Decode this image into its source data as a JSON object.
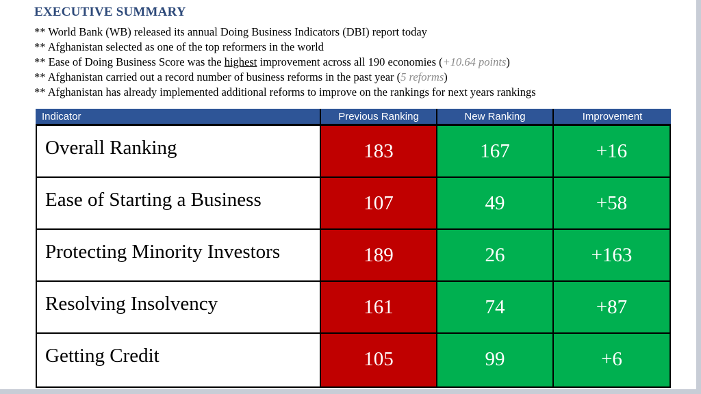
{
  "title": "EXECUTIVE SUMMARY",
  "bullets": [
    {
      "text": "** World Bank (WB) released its annual Doing Business Indicators (DBI) report today"
    },
    {
      "text": "** Afghanistan selected as one of the top reformers in the world"
    },
    {
      "pre": "** Ease of Doing Business Score was the ",
      "highlight": "highest",
      "post": " improvement across all 190 economies (",
      "note": "+10.64 points",
      "close": ")"
    },
    {
      "pre": "** Afghanistan carried out a record number of business reforms in the past year (",
      "note": "5 reforms",
      "close": ")"
    },
    {
      "text": "** Afghanistan has already implemented additional reforms to improve on the rankings for next years rankings"
    }
  ],
  "table": {
    "headers": [
      "Indicator",
      "Previous Ranking",
      "New Ranking",
      "Improvement"
    ],
    "rows": [
      {
        "indicator": "Overall Ranking",
        "previous": "183",
        "new": "167",
        "improvement": "+16"
      },
      {
        "indicator": "Ease of Starting a Business",
        "previous": "107",
        "new": "49",
        "improvement": "+58"
      },
      {
        "indicator": "Protecting Minority Investors",
        "previous": "189",
        "new": "26",
        "improvement": "+163"
      },
      {
        "indicator": "Resolving Insolvency",
        "previous": "161",
        "new": "74",
        "improvement": "+87"
      },
      {
        "indicator": "Getting Credit",
        "previous": "105",
        "new": "99",
        "improvement": "+6"
      }
    ]
  },
  "colors": {
    "title": "#2e4a7a",
    "header": "#2e5597",
    "previous": "#c00000",
    "new": "#00b050",
    "improvement": "#00b050"
  }
}
